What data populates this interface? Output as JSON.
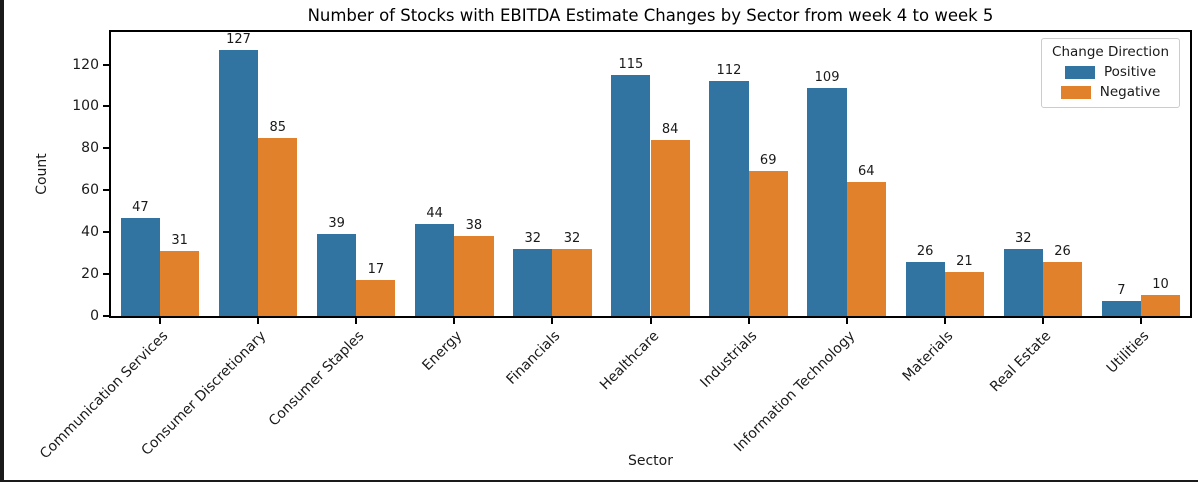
{
  "window": {
    "background": "#ffffff",
    "edge_color": "#1a1a1a"
  },
  "chart_data": {
    "type": "bar",
    "title": "Number of Stocks with EBITDA Estimate Changes by Sector from week 4 to week 5",
    "xlabel": "Sector",
    "ylabel": "Count",
    "categories": [
      "Communication Services",
      "Consumer Discretionary",
      "Consumer Staples",
      "Energy",
      "Financials",
      "Healthcare",
      "Industrials",
      "Information Technology",
      "Materials",
      "Real Estate",
      "Utilities"
    ],
    "series": [
      {
        "name": "Positive",
        "color": "#3274a1",
        "values": [
          47,
          127,
          39,
          44,
          32,
          115,
          112,
          109,
          26,
          32,
          7
        ]
      },
      {
        "name": "Negative",
        "color": "#e1812c",
        "values": [
          31,
          85,
          17,
          38,
          32,
          84,
          69,
          64,
          21,
          26,
          10
        ]
      }
    ],
    "ylim": [
      0,
      135.5
    ],
    "yticks": [
      0,
      20,
      40,
      60,
      80,
      100,
      120
    ],
    "grid": false,
    "bar_labels": true,
    "legend": {
      "title": "Change Direction",
      "position": "upper right"
    }
  }
}
